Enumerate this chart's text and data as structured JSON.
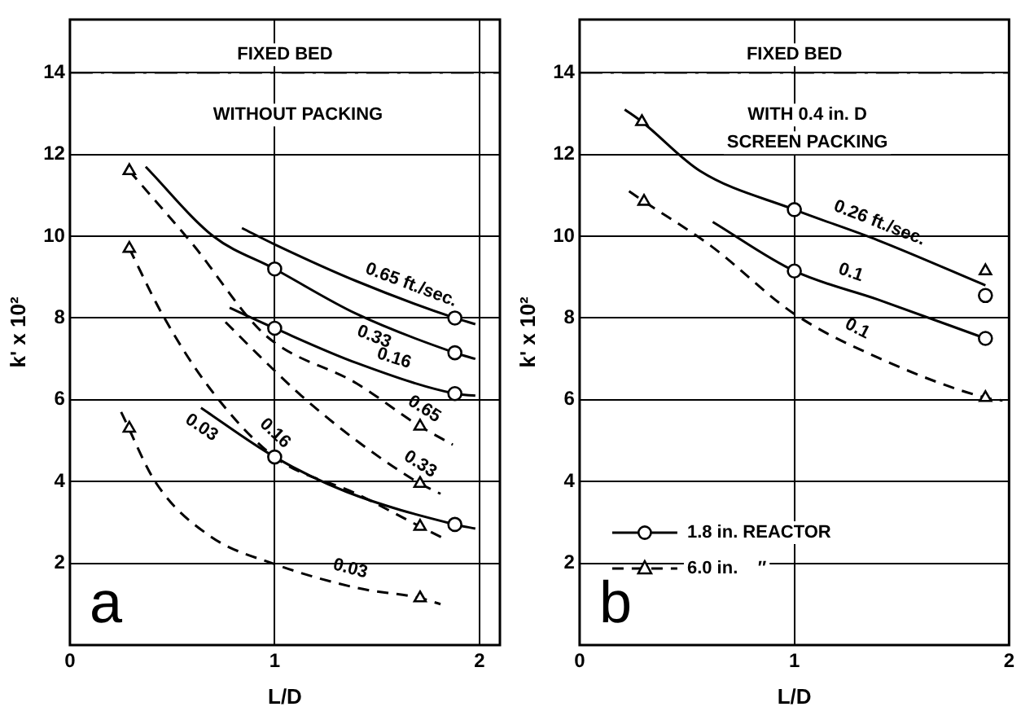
{
  "chart_data": [
    {
      "type": "line",
      "title": "a",
      "xlabel": "L/D",
      "ylabel": "k' x 10²",
      "xlim": [
        0,
        2.1
      ],
      "ylim": [
        0,
        15.3
      ],
      "xticks": [
        0,
        1,
        2
      ],
      "yticks": [
        2,
        4,
        6,
        8,
        10,
        12,
        14
      ],
      "grid": true,
      "legend": false,
      "ref_lines": [
        {
          "axis": "y",
          "value": 14,
          "label": "FIXED BED",
          "line_style": "dashed"
        }
      ],
      "annotations": [
        "WITHOUT PACKING",
        {
          "text": "0.65 ft./sec.",
          "x": 1.64,
          "y": 8.45
        },
        {
          "text": "0.33",
          "x": 1.51,
          "y": 7.85
        },
        {
          "text": "0.16",
          "x": 1.56,
          "y": 6.65
        },
        {
          "text": "0.65",
          "x": 1.69,
          "y": 5.45
        },
        {
          "text": "0.33",
          "x": 1.67,
          "y": 4.1
        },
        {
          "text": "0.16",
          "x": 0.95,
          "y": 4.9
        },
        {
          "text": "0.03",
          "x": 0.68,
          "y": 5.6
        },
        {
          "text": "0.03",
          "x": 1.35,
          "y": 1.5
        }
      ],
      "series": [
        {
          "type": "line",
          "color": "#000000",
          "line_style": "solid",
          "marker": "none",
          "x": [
            0.84,
            1.0,
            1.4,
            1.88,
            1.98
          ],
          "values": [
            10.2,
            9.8,
            8.9,
            8.0,
            7.85
          ]
        },
        {
          "type": "line",
          "color": "#000000",
          "line_style": "solid",
          "marker": "none",
          "x": [
            0.37,
            0.7,
            1.0,
            1.4,
            1.88,
            1.98
          ],
          "values": [
            11.7,
            10.0,
            9.2,
            8.1,
            7.15,
            7.0
          ]
        },
        {
          "type": "line",
          "color": "#000000",
          "line_style": "solid",
          "marker": "none",
          "x": [
            0.78,
            1.0,
            1.4,
            1.88,
            1.98
          ],
          "values": [
            8.25,
            7.75,
            6.9,
            6.15,
            6.1
          ]
        },
        {
          "type": "line",
          "color": "#000000",
          "line_style": "solid",
          "marker": "none",
          "x": [
            0.64,
            1.0,
            1.35,
            1.88,
            1.98
          ],
          "values": [
            5.8,
            4.6,
            3.75,
            2.95,
            2.85
          ]
        },
        {
          "type": "line",
          "color": "#000000",
          "line_style": "dashed",
          "marker": "none",
          "x": [
            0.29,
            0.6,
            0.95,
            1.4,
            1.71,
            1.87
          ],
          "values": [
            11.6,
            9.8,
            7.6,
            6.4,
            5.35,
            4.9
          ]
        },
        {
          "type": "line",
          "color": "#000000",
          "line_style": "dashed",
          "marker": "none",
          "x": [
            0.76,
            0.92,
            1.13,
            1.4,
            1.71,
            1.81
          ],
          "values": [
            7.9,
            7.1,
            6.1,
            5.0,
            3.95,
            3.7
          ]
        },
        {
          "type": "line",
          "color": "#000000",
          "line_style": "dashed",
          "marker": "none",
          "x": [
            0.29,
            0.45,
            0.68,
            1.0,
            1.4,
            1.71,
            1.83
          ],
          "values": [
            9.7,
            8.1,
            6.3,
            4.6,
            3.7,
            2.9,
            2.6
          ]
        },
        {
          "type": "line",
          "color": "#000000",
          "line_style": "dashed",
          "marker": "none",
          "x": [
            0.25,
            0.42,
            0.68,
            1.0,
            1.4,
            1.71,
            1.81
          ],
          "values": [
            5.7,
            3.97,
            2.68,
            1.98,
            1.4,
            1.15,
            1.0
          ]
        },
        {
          "type": "scatter",
          "color": "#000000",
          "marker": "circle",
          "x": [
            1.0,
            1.88,
            1.0,
            1.88,
            1.88,
            1.0,
            1.88
          ],
          "values": [
            9.2,
            8.0,
            7.75,
            7.15,
            6.15,
            4.6,
            2.95
          ]
        },
        {
          "type": "scatter",
          "color": "#000000",
          "marker": "triangle",
          "x": [
            0.29,
            0.29,
            0.29,
            1.71,
            1.71,
            1.71,
            1.71
          ],
          "values": [
            11.6,
            9.7,
            5.3,
            5.35,
            3.95,
            2.9,
            1.15
          ]
        }
      ]
    },
    {
      "type": "line",
      "title": "b",
      "xlabel": "L/D",
      "ylabel": "k' x 10²",
      "xlim": [
        0,
        2.0
      ],
      "ylim": [
        0,
        15.3
      ],
      "xticks": [
        0,
        1,
        2
      ],
      "yticks": [
        2,
        4,
        6,
        8,
        10,
        12,
        14
      ],
      "grid": true,
      "legend": "bottom left",
      "ref_lines": [
        {
          "axis": "y",
          "value": 14,
          "label": "FIXED BED",
          "line_style": "dashed"
        }
      ],
      "annotations": [
        "WITH 0.4 in. D",
        "SCREEN PACKING",
        {
          "text": "0.26 ft./sec.",
          "x": 1.37,
          "y": 9.97
        },
        {
          "text": "0.1",
          "x": 1.24,
          "y": 8.75
        },
        {
          "text": "0.1",
          "x": 1.26,
          "y": 7.4
        }
      ],
      "series": [
        {
          "type": "line",
          "color": "#000000",
          "line_style": "solid",
          "marker": "none",
          "x": [
            0.21,
            0.29,
            0.56,
            1.0,
            1.39,
            1.89
          ],
          "values": [
            13.1,
            12.8,
            11.6,
            10.65,
            9.9,
            8.8
          ]
        },
        {
          "type": "line",
          "color": "#000000",
          "line_style": "solid",
          "marker": "none",
          "x": [
            0.62,
            1.0,
            1.39,
            1.89
          ],
          "values": [
            10.35,
            9.15,
            8.45,
            7.5
          ]
        },
        {
          "type": "line",
          "color": "#000000",
          "line_style": "dashed",
          "marker": "none",
          "x": [
            0.23,
            0.3,
            0.61,
            1.0,
            1.39,
            1.89,
            1.97
          ],
          "values": [
            11.1,
            10.85,
            9.77,
            8.1,
            7.03,
            6.05,
            5.98
          ]
        },
        {
          "type": "scatter",
          "name": "1.8 in. REACTOR",
          "color": "#000000",
          "marker": "circle",
          "line_style": "solid",
          "x": [
            1.0,
            1.89,
            1.0,
            1.89
          ],
          "values": [
            10.65,
            8.55,
            9.15,
            7.5
          ]
        },
        {
          "type": "scatter",
          "name": "6.0 in.    ″",
          "color": "#000000",
          "marker": "triangle",
          "line_style": "dashed",
          "x": [
            0.29,
            0.3,
            1.89,
            1.89
          ],
          "values": [
            12.8,
            10.85,
            9.15,
            6.05
          ]
        }
      ]
    }
  ]
}
